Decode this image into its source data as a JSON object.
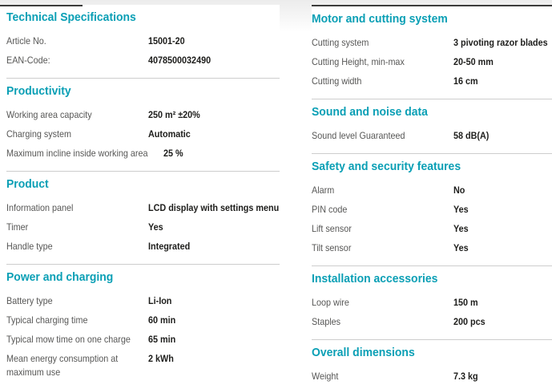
{
  "theme": {
    "accent_color": "#0a9fb5",
    "top_rule_color": "#3c3c3b",
    "divider_color": "#cdcdcd",
    "label_color": "#575756",
    "value_color": "#1d1d1b",
    "top_gradient_color": "#ececec"
  },
  "columns": [
    {
      "id": "left",
      "sections": [
        {
          "title": "Technical Specifications",
          "rows": [
            {
              "label": "Article No.",
              "value": "15001-20"
            },
            {
              "label": "EAN-Code:",
              "value": "4078500032490"
            }
          ]
        },
        {
          "title": "Productivity",
          "rows": [
            {
              "label": "Working area capacity",
              "value": "250 m² ±20%"
            },
            {
              "label": "Charging system",
              "value": "Automatic"
            },
            {
              "label": "Maximum incline inside working area",
              "value": "25 %"
            }
          ]
        },
        {
          "title": "Product",
          "rows": [
            {
              "label": "Information panel",
              "value": "LCD display with settings menu"
            },
            {
              "label": "Timer",
              "value": "Yes"
            },
            {
              "label": "Handle type",
              "value": "Integrated"
            }
          ]
        },
        {
          "title": "Power and charging",
          "rows": [
            {
              "label": "Battery type",
              "value": "Li-Ion"
            },
            {
              "label": "Typical charging time",
              "value": "60 min"
            },
            {
              "label": "Typical mow time on one charge",
              "value": "65 min"
            },
            {
              "label": "Mean energy consumption at\nmaximum use",
              "value": "2 kWh"
            }
          ]
        }
      ]
    },
    {
      "id": "right",
      "sections": [
        {
          "title": "Motor and cutting system",
          "rows": [
            {
              "label": "Cutting system",
              "value": "3 pivoting razor blades"
            },
            {
              "label": "Cutting Height, min-max",
              "value": "20-50 mm"
            },
            {
              "label": "Cutting width",
              "value": "16 cm"
            }
          ]
        },
        {
          "title": "Sound and noise data",
          "rows": [
            {
              "label": "Sound level Guaranteed",
              "value": "58 dB(A)"
            }
          ]
        },
        {
          "title": "Safety and security features",
          "rows": [
            {
              "label": "Alarm",
              "value": "No"
            },
            {
              "label": "PIN code",
              "value": "Yes"
            },
            {
              "label": "Lift sensor",
              "value": "Yes"
            },
            {
              "label": "Tilt sensor",
              "value": "Yes"
            }
          ]
        },
        {
          "title": "Installation accessories",
          "rows": [
            {
              "label": "Loop wire",
              "value": "150 m"
            },
            {
              "label": "Staples",
              "value": "200 pcs"
            }
          ]
        },
        {
          "title": "Overall dimensions",
          "rows": [
            {
              "label": "Weight",
              "value": "7.3 kg"
            }
          ]
        }
      ]
    }
  ]
}
